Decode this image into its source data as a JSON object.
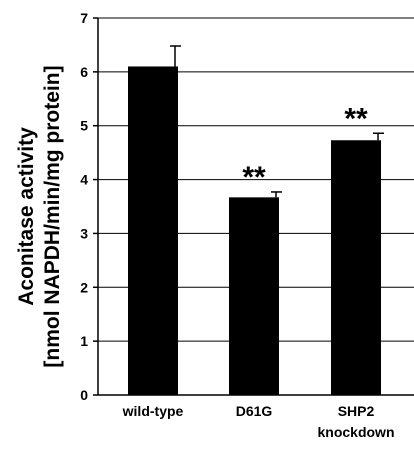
{
  "chart_data": {
    "type": "bar",
    "categories": [
      [
        "wild-type"
      ],
      [
        "D61G"
      ],
      [
        "SHP2",
        "knockdown"
      ]
    ],
    "values": [
      6.1,
      3.67,
      4.73
    ],
    "errors": [
      0.38,
      0.1,
      0.13
    ],
    "annotations": [
      "",
      "**",
      "**"
    ],
    "ylabel": [
      "Aconitase activity",
      "[nmol NAPDH/min/mg protein]"
    ],
    "ylim": [
      0,
      7
    ],
    "yticks": [
      0,
      1,
      2,
      3,
      4,
      5,
      6,
      7
    ],
    "grid": true,
    "bar_color": "#000000"
  }
}
